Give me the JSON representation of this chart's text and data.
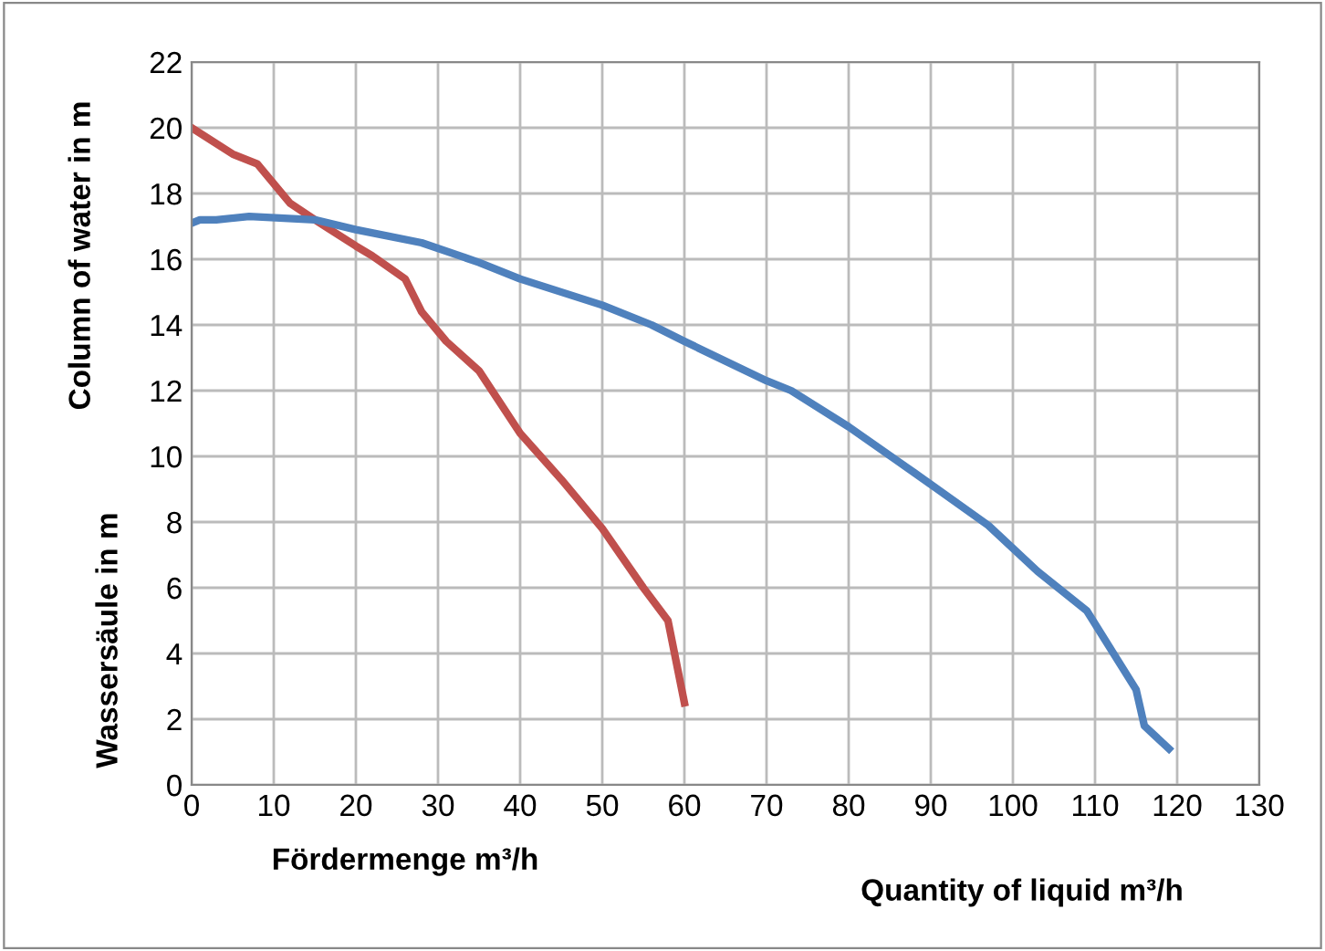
{
  "chart_data": {
    "type": "line",
    "xlabel": "Fördermenge m³/h",
    "ylabel": "Wassersäule in m",
    "annotations": [
      "Quantity of liquid m³/h",
      "Column of water in m"
    ],
    "xlim": [
      0,
      130
    ],
    "xticks": [
      0,
      10,
      20,
      30,
      40,
      50,
      60,
      70,
      80,
      90,
      100,
      110,
      120,
      130
    ],
    "ylim": [
      0,
      22
    ],
    "yticks": [
      0,
      2,
      4,
      6,
      8,
      10,
      12,
      14,
      16,
      18,
      20,
      22
    ],
    "grid": true,
    "marker": "none",
    "line_style": "solid",
    "series": [
      {
        "color": "#c0504d",
        "x": [
          0,
          5,
          8,
          12,
          15,
          20,
          22,
          26,
          28,
          31,
          35,
          40,
          45,
          50,
          55,
          58,
          60
        ],
        "values": [
          20,
          19.2,
          18.9,
          17.7,
          17.2,
          16.4,
          16.1,
          15.4,
          14.4,
          13.5,
          12.6,
          10.7,
          9.3,
          7.8,
          6.0,
          5.0,
          2.5
        ]
      },
      {
        "color": "#4f81bd",
        "x": [
          0,
          1,
          3,
          7,
          15,
          20,
          28,
          35,
          40,
          50,
          56,
          60,
          70,
          73,
          80,
          88,
          97,
          103,
          109,
          115,
          116,
          119
        ],
        "values": [
          17.1,
          17.2,
          17.2,
          17.3,
          17.2,
          16.9,
          16.5,
          15.9,
          15.4,
          14.6,
          14.0,
          13.5,
          12.3,
          12.0,
          10.9,
          9.5,
          7.9,
          6.5,
          5.3,
          2.9,
          1.8,
          1.1
        ]
      }
    ]
  }
}
